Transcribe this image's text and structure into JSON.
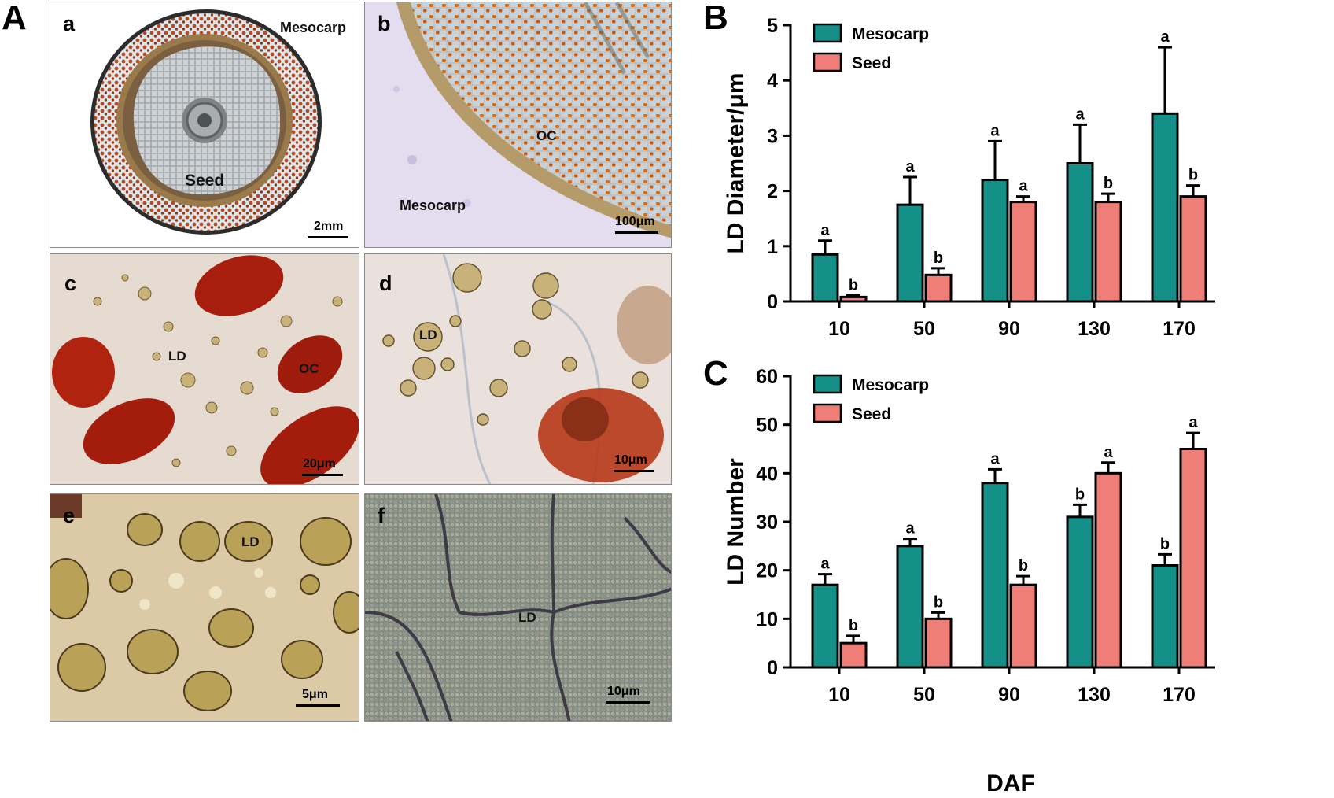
{
  "panel_labels": {
    "A": "A",
    "B": "B",
    "C": "C"
  },
  "micrographs": [
    {
      "letter": "a",
      "labels": {
        "tissue1": "Mesocarp",
        "tissue2": "Seed"
      },
      "scale": "2mm"
    },
    {
      "letter": "b",
      "labels": {
        "oc": "OC",
        "tissue": "Mesocarp"
      },
      "scale": "100μm"
    },
    {
      "letter": "c",
      "labels": {
        "ld": "LD",
        "oc": "OC"
      },
      "scale": "20μm"
    },
    {
      "letter": "d",
      "labels": {
        "ld": "LD"
      },
      "scale": "10μm"
    },
    {
      "letter": "e",
      "labels": {
        "ld": "LD"
      },
      "scale": "5μm"
    },
    {
      "letter": "f",
      "labels": {
        "ld": "LD"
      },
      "scale": "10μm"
    }
  ],
  "colors": {
    "mesocarp": "#159088",
    "seed": "#f07e78",
    "axis": "#000000"
  },
  "chart_data": [
    {
      "panel": "B",
      "type": "bar",
      "categories": [
        "10",
        "50",
        "90",
        "130",
        "170"
      ],
      "ylabel": "LD Diameter/μm",
      "xlabel": "",
      "ylim": [
        0,
        5
      ],
      "yticks": [
        0,
        1,
        2,
        3,
        4,
        5
      ],
      "legend_position": "top-left",
      "series": [
        {
          "name": "Mesocarp",
          "values": [
            0.85,
            1.75,
            2.2,
            2.5,
            3.4
          ],
          "errors": [
            0.25,
            0.5,
            0.7,
            0.7,
            1.2
          ],
          "letters": [
            "a",
            "a",
            "a",
            "a",
            "a"
          ]
        },
        {
          "name": "Seed",
          "values": [
            0.08,
            0.48,
            1.8,
            1.8,
            1.9
          ],
          "errors": [
            0.03,
            0.12,
            0.1,
            0.15,
            0.2
          ],
          "letters": [
            "b",
            "b",
            "a",
            "b",
            "b"
          ]
        }
      ]
    },
    {
      "panel": "C",
      "type": "bar",
      "categories": [
        "10",
        "50",
        "90",
        "130",
        "170"
      ],
      "ylabel": "LD Number",
      "xlabel": "DAF",
      "ylim": [
        0,
        60
      ],
      "yticks": [
        0,
        10,
        20,
        30,
        40,
        50,
        60
      ],
      "legend_position": "top-left",
      "series": [
        {
          "name": "Mesocarp",
          "values": [
            17,
            25,
            38,
            31,
            21
          ],
          "errors": [
            2.2,
            1.5,
            2.8,
            2.5,
            2.3
          ],
          "letters": [
            "a",
            "a",
            "a",
            "b",
            "b"
          ]
        },
        {
          "name": "Seed",
          "values": [
            5,
            10,
            17,
            40,
            45
          ],
          "errors": [
            1.5,
            1.3,
            1.8,
            2.2,
            3.3
          ],
          "letters": [
            "b",
            "b",
            "b",
            "a",
            "a"
          ]
        }
      ]
    }
  ]
}
